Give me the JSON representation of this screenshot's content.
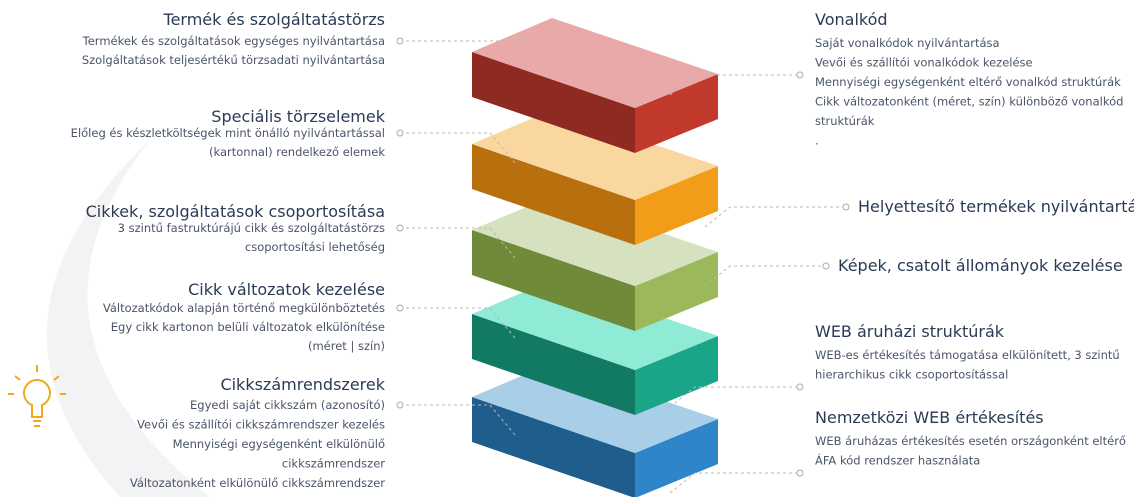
{
  "left": [
    {
      "title": "Termék és szolgáltatástörzs",
      "lines": [
        "Termékek és szolgáltatások egységes nyilvántartása",
        "Szolgáltatások teljesértékű törzsadati nyilvántartása"
      ]
    },
    {
      "title": "Speciális törzselemek",
      "lines": [
        "Előleg és készletköltségek mint önálló nyilvántartással",
        "(kartonnal) rendelkező elemek"
      ]
    },
    {
      "title": "Cikkek, szolgáltatások csoportosítása",
      "lines": [
        "3 szintű fastruktúrájú cikk és szolgáltatástörzs",
        "csoportosítási lehetőség"
      ]
    },
    {
      "title": "Cikk változatok kezelése",
      "lines": [
        "Változatkódok alapján történő megkülönböztetés",
        "Egy cikk kartonon belüli változatok elkülönítése",
        "(méret | szín)"
      ]
    },
    {
      "title": "Cikkszámrendszerek",
      "lines": [
        "Egyedi saját cikkszám (azonosító)",
        "Vevői és szállítói cikkszámrendszer kezelés",
        "Mennyiségi egységenként elkülönülő",
        "cikkszámrendszer",
        "Változatonként elkülönülő cikkszámrendszer"
      ]
    }
  ],
  "right": [
    {
      "title": "Vonalkód",
      "lines": [
        "Saját vonalkódok nyilvántartása",
        "Vevői és szállítói vonalkódok kezelése",
        "Mennyiségi egységenként eltérő vonalkód struktúrák",
        "Cikk változatonként (méret, szín) különböző vonalkód",
        "struktúrák",
        "."
      ]
    },
    {
      "title": "Helyettesítő termékek nyilvántartása",
      "lines": []
    },
    {
      "title": "Képek, csatolt állományok kezelése",
      "lines": []
    },
    {
      "title": "WEB áruházi struktúrák",
      "lines": [
        "WEB-es értékesítés támogatása elkülönített, 3 szintű",
        "hierarchikus cikk csoportosítással"
      ]
    },
    {
      "title": "Nemzetközi WEB értékesítés",
      "lines": [
        "WEB áruházas értékesítés esetén országonként eltérő",
        "ÁFA kód rendszer használata"
      ]
    }
  ]
}
